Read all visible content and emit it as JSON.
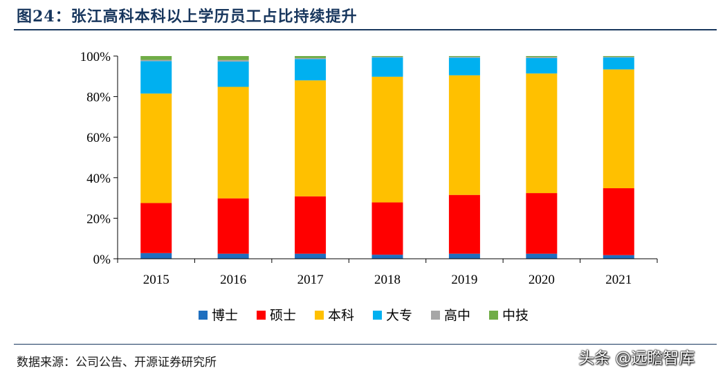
{
  "header": {
    "title": "图24：张江高科本科以上学历员工占比持续提升"
  },
  "footer": {
    "source": "数据来源：公司公告、开源证券研究所",
    "watermark": "头条 @远瞻智库"
  },
  "chart_data": {
    "type": "bar",
    "stacked": true,
    "categories": [
      "2015",
      "2016",
      "2017",
      "2018",
      "2019",
      "2020",
      "2021"
    ],
    "ylim": [
      0,
      100
    ],
    "yticks": [
      "0%",
      "20%",
      "40%",
      "60%",
      "80%",
      "100%"
    ],
    "legend_position": "bottom",
    "series": [
      {
        "name": "博士",
        "color": "#1f6fbf",
        "values": [
          2.8,
          2.5,
          2.5,
          2.0,
          2.5,
          2.5,
          1.8
        ]
      },
      {
        "name": "硕士",
        "color": "#ff0000",
        "values": [
          24.7,
          27.3,
          28.3,
          25.8,
          29.0,
          29.9,
          33.0
        ]
      },
      {
        "name": "本科",
        "color": "#ffc000",
        "values": [
          54.0,
          55.0,
          57.2,
          62.0,
          59.0,
          59.0,
          58.6
        ]
      },
      {
        "name": "大专",
        "color": "#00b0f0",
        "values": [
          16.0,
          12.5,
          10.5,
          9.5,
          8.7,
          7.6,
          5.9
        ]
      },
      {
        "name": "高中",
        "color": "#a6a6a6",
        "values": [
          0.6,
          0.7,
          0.5,
          0.3,
          0.4,
          0.5,
          0.3
        ]
      },
      {
        "name": "中技",
        "color": "#70ad47",
        "values": [
          1.9,
          2.0,
          1.0,
          0.4,
          0.4,
          0.5,
          0.4
        ]
      }
    ]
  }
}
